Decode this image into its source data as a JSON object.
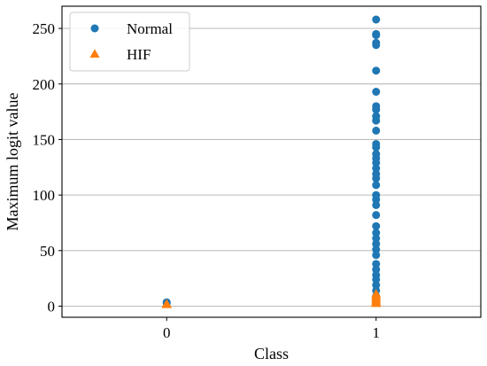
{
  "chart_data": {
    "type": "scatter",
    "xlabel": "Class",
    "ylabel": "Maximum logit value",
    "xlim": [
      -0.5,
      1.5
    ],
    "ylim": [
      -10,
      270
    ],
    "xticks": [
      0,
      1
    ],
    "yticks": [
      0,
      50,
      100,
      150,
      200,
      250
    ],
    "grid": "horizontal",
    "legend_position": "top-left",
    "series": [
      {
        "name": "Normal",
        "marker": "circle",
        "color": "#1f77b4",
        "points": [
          [
            0,
            3.5
          ],
          [
            0,
            2.5
          ],
          [
            1,
            258
          ],
          [
            1,
            245
          ],
          [
            1,
            244
          ],
          [
            1,
            237
          ],
          [
            1,
            235
          ],
          [
            1,
            212
          ],
          [
            1,
            193
          ],
          [
            1,
            180
          ],
          [
            1,
            177
          ],
          [
            1,
            171
          ],
          [
            1,
            167
          ],
          [
            1,
            158
          ],
          [
            1,
            146
          ],
          [
            1,
            143
          ],
          [
            1,
            137
          ],
          [
            1,
            133
          ],
          [
            1,
            129
          ],
          [
            1,
            124
          ],
          [
            1,
            119
          ],
          [
            1,
            115
          ],
          [
            1,
            109
          ],
          [
            1,
            100
          ],
          [
            1,
            96
          ],
          [
            1,
            91
          ],
          [
            1,
            82
          ],
          [
            1,
            72
          ],
          [
            1,
            66
          ],
          [
            1,
            61
          ],
          [
            1,
            56
          ],
          [
            1,
            51
          ],
          [
            1,
            46
          ],
          [
            1,
            38
          ],
          [
            1,
            33
          ],
          [
            1,
            28
          ],
          [
            1,
            24
          ],
          [
            1,
            19
          ],
          [
            1,
            14
          ],
          [
            1,
            9
          ],
          [
            1,
            6
          ],
          [
            1,
            3
          ]
        ]
      },
      {
        "name": "HIF",
        "marker": "triangle",
        "color": "#ff7f0e",
        "points": [
          [
            0,
            2
          ],
          [
            0,
            1.5
          ],
          [
            1,
            11
          ],
          [
            1,
            9
          ],
          [
            1,
            7
          ],
          [
            1,
            5
          ],
          [
            1,
            3.5
          ],
          [
            1,
            2.5
          ]
        ]
      }
    ]
  }
}
